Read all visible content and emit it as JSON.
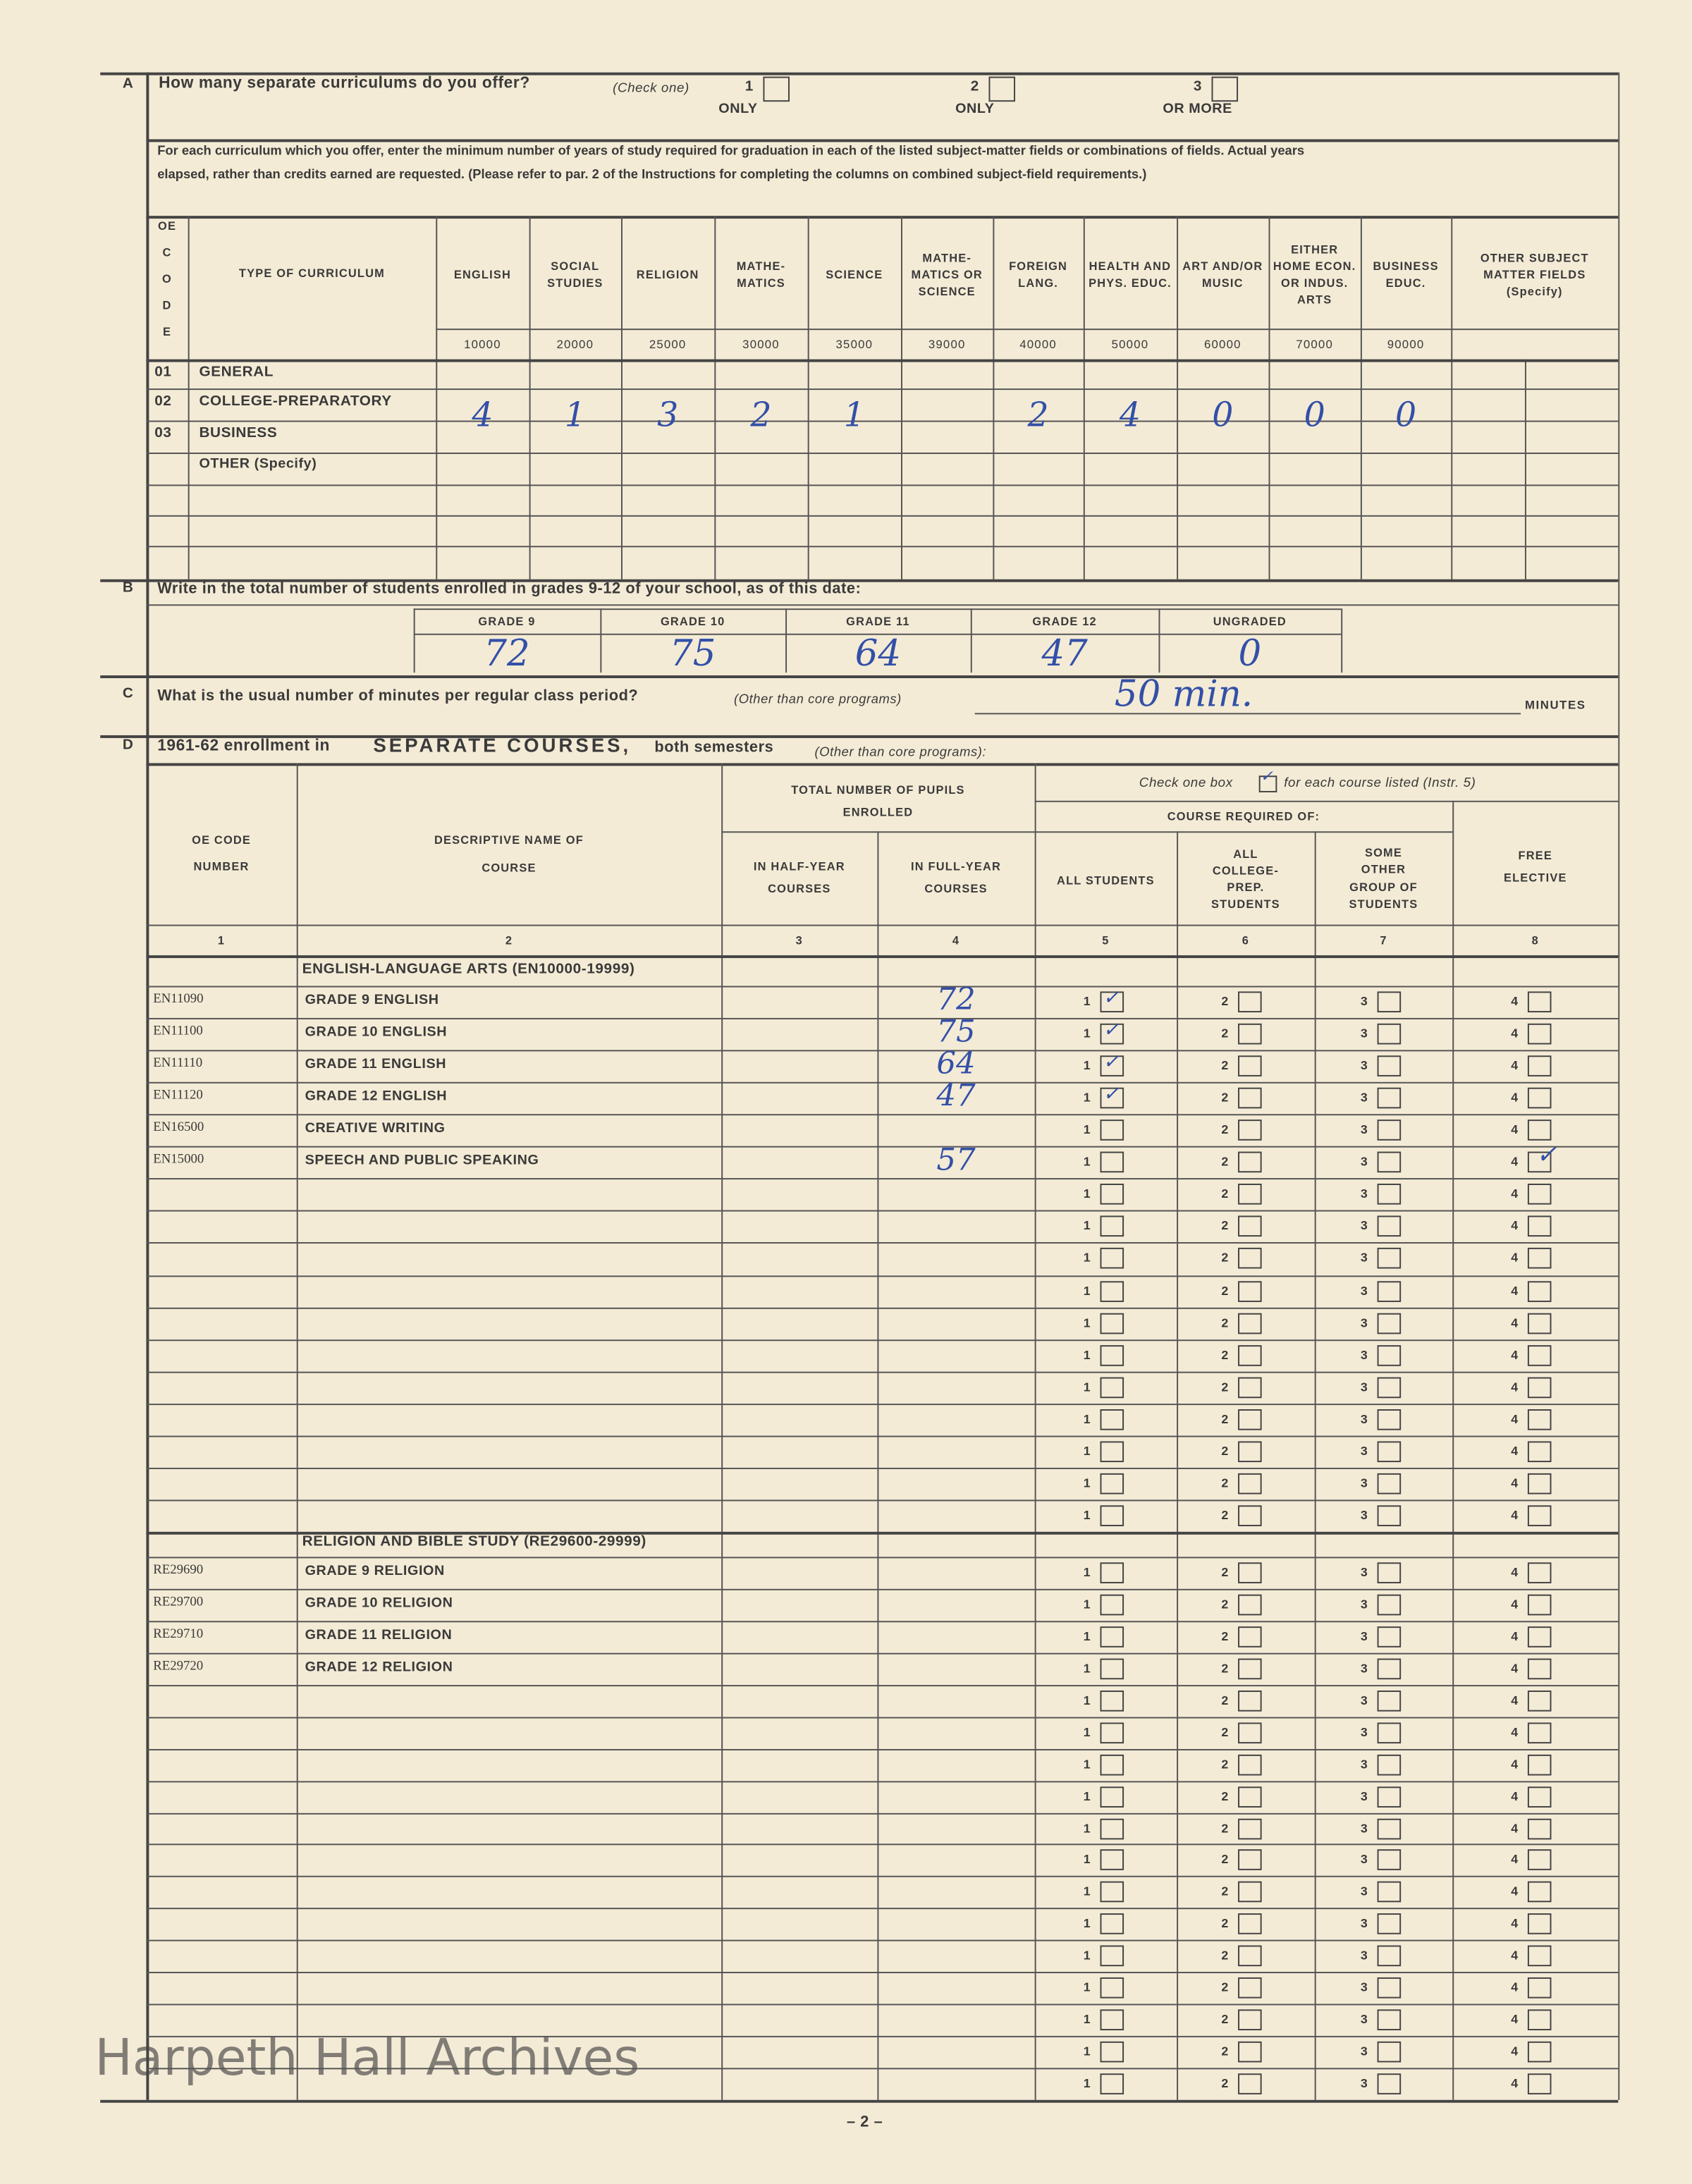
{
  "section_a": {
    "letter": "A",
    "question": "How many separate curriculums do you offer?",
    "check_note": "(Check one)",
    "options": [
      {
        "num": "1",
        "label": "ONLY"
      },
      {
        "num": "2",
        "label": "ONLY"
      },
      {
        "num": "3",
        "label": "OR MORE"
      }
    ],
    "instructions_line1": "For each curriculum which you offer, enter the minimum number of years of study required for graduation in each of the listed subject-matter fields or combinations of fields.  Actual years",
    "instructions_line2": "elapsed, rather than credits earned are requested. (Please refer to par. 2 of the Instructions for completing the columns on combined subject-field requirements.)",
    "code_header": "OE C O D E",
    "type_header": "TYPE OF CURRICULUM",
    "columns": [
      {
        "label": "ENGLISH",
        "code": "10000"
      },
      {
        "label": "SOCIAL STUDIES",
        "code": "20000"
      },
      {
        "label": "RELIGION",
        "code": "25000"
      },
      {
        "label": "MATHE- MATICS",
        "code": "30000"
      },
      {
        "label": "SCIENCE",
        "code": "35000"
      },
      {
        "label": "MATHE- MATICS OR SCIENCE",
        "code": "39000"
      },
      {
        "label": "FOREIGN LANG.",
        "code": "40000"
      },
      {
        "label": "HEALTH AND PHYS. EDUC.",
        "code": "50000"
      },
      {
        "label": "ART AND/OR MUSIC",
        "code": "60000"
      },
      {
        "label": "EITHER HOME ECON. OR INDUS. ARTS",
        "code": "70000"
      },
      {
        "label": "BUSINESS EDUC.",
        "code": "90000"
      },
      {
        "label": "OTHER SUBJECT MATTER FIELDS (Specify)",
        "code": ""
      }
    ],
    "rows": [
      {
        "code": "01",
        "type": "GENERAL",
        "values": []
      },
      {
        "code": "02",
        "type": "COLLEGE-PREPARATORY",
        "values": [
          "4",
          "1",
          "3",
          "2",
          "1",
          "",
          "2",
          "4",
          "0",
          "0",
          "0"
        ]
      },
      {
        "code": "03",
        "type": "BUSINESS",
        "values": []
      },
      {
        "code": "",
        "type": "OTHER (Specify)",
        "values": []
      }
    ]
  },
  "section_b": {
    "letter": "B",
    "question": "Write in the total number of students enrolled in grades 9-12 of your school, as of this date:",
    "grades": [
      {
        "label": "GRADE 9",
        "value": "72"
      },
      {
        "label": "GRADE 10",
        "value": "75"
      },
      {
        "label": "GRADE 11",
        "value": "64"
      },
      {
        "label": "GRADE 12",
        "value": "47"
      },
      {
        "label": "UNGRADED",
        "value": "0"
      }
    ]
  },
  "section_c": {
    "letter": "C",
    "question": "What is the usual number of minutes per regular class period?",
    "note": "(Other than core programs)",
    "value": "50 min.",
    "unit": "MINUTES"
  },
  "section_d": {
    "letter": "D",
    "title_pre": "1961-62 enrollment in",
    "title_em": "SEPARATE COURSES,",
    "title_post": "both semesters",
    "note": "(Other than core programs):",
    "headers": {
      "code": "OE CODE NUMBER",
      "name": "DESCRIPTIVE NAME OF COURSE",
      "total": "TOTAL NUMBER OF PUPILS ENROLLED",
      "half": "IN HALF-YEAR COURSES",
      "full": "IN FULL-YEAR COURSES",
      "check": "Check one box",
      "check_post": "for each course listed (Instr. 5)",
      "required": "COURSE REQUIRED OF:",
      "all": "ALL STUDENTS",
      "college": "ALL COLLEGE- PREP. STUDENTS",
      "other": "SOME OTHER GROUP OF STUDENTS",
      "free": "FREE ELECTIVE",
      "col_numbers": [
        "1",
        "2",
        "3",
        "4",
        "5",
        "6",
        "7",
        "8"
      ]
    },
    "box_numbers": [
      "1",
      "2",
      "3",
      "4"
    ],
    "groups": [
      {
        "title": "ENGLISH-LANGUAGE ARTS (EN10000-19999)",
        "rows": 17,
        "courses": [
          {
            "code": "EN11090",
            "name": "GRADE 9 ENGLISH",
            "half": "",
            "full": "72",
            "checked": 1
          },
          {
            "code": "EN11100",
            "name": "GRADE 10 ENGLISH",
            "half": "",
            "full": "75",
            "checked": 1
          },
          {
            "code": "EN11110",
            "name": "GRADE 11 ENGLISH",
            "half": "",
            "full": "64",
            "checked": 1
          },
          {
            "code": "EN11120",
            "name": "GRADE 12 ENGLISH",
            "half": "",
            "full": "47",
            "checked": 1
          },
          {
            "code": "EN16500",
            "name": "CREATIVE WRITING",
            "half": "",
            "full": "",
            "checked": 0
          },
          {
            "code": "EN15000",
            "name": "SPEECH AND PUBLIC SPEAKING",
            "half": "",
            "full": "57",
            "checked": 4
          }
        ]
      },
      {
        "title": "RELIGION AND BIBLE STUDY (RE29600-29999)",
        "rows": 17,
        "courses": [
          {
            "code": "RE29690",
            "name": "GRADE 9 RELIGION",
            "half": "",
            "full": "",
            "checked": 0
          },
          {
            "code": "RE29700",
            "name": "GRADE 10 RELIGION",
            "half": "",
            "full": "",
            "checked": 0
          },
          {
            "code": "RE29710",
            "name": "GRADE 11 RELIGION",
            "half": "",
            "full": "",
            "checked": 0
          },
          {
            "code": "RE29720",
            "name": "GRADE 12 RELIGION",
            "half": "",
            "full": "",
            "checked": 0
          }
        ]
      }
    ]
  },
  "page_number": "– 2 –",
  "watermark": "Harpeth Hall Archives",
  "colors": {
    "paper": "#f4ebd6",
    "ink": "#3a3a3a",
    "handwriting": "#3350a8"
  }
}
